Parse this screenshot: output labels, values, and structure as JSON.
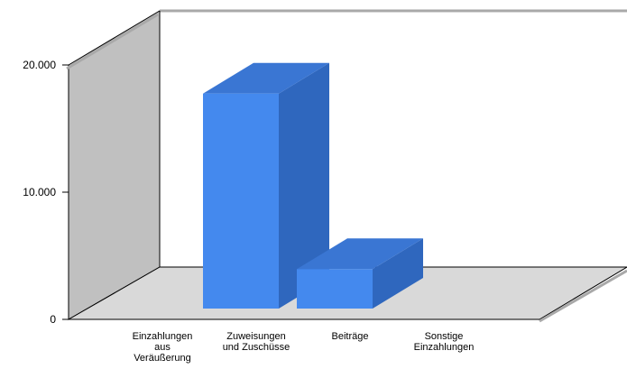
{
  "chart_data": {
    "type": "bar",
    "categories": [
      "Einzahlungen aus Veräußerung",
      "Zuweisungen und Zuschüsse",
      "Beiträge",
      "Sonstige Einzahlungen"
    ],
    "category_label_lines": [
      [
        "Einzahlungen",
        "aus",
        "Veräußerung"
      ],
      [
        "Zuweisungen",
        "und Zuschüsse"
      ],
      [
        "Beiträge"
      ],
      [
        "Sonstige",
        "Einzahlungen"
      ]
    ],
    "values": [
      0,
      16900,
      3100,
      0
    ],
    "ylim": [
      0,
      20000
    ],
    "yticks": [
      0,
      10000,
      20000
    ],
    "ytick_labels": [
      "0",
      "10.000",
      "20.000"
    ],
    "grid": false,
    "style": "3d",
    "colors": {
      "bar_front": "#4489ee",
      "bar_top": "#3a76d3",
      "bar_side": "#2f67be",
      "back_wall": "#c0c0c0",
      "floor": "#d9d9d9",
      "edge_shadow": "#a9a9a9"
    }
  }
}
